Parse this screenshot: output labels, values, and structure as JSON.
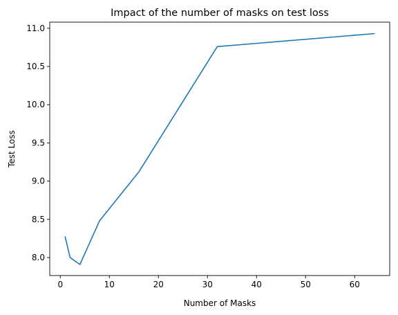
{
  "chart_data": {
    "type": "line",
    "title": "Impact of the number of masks on test loss",
    "xlabel": "Number of Masks",
    "ylabel": "Test Loss",
    "xlim": [
      -2.15,
      67.15
    ],
    "ylim": [
      7.765,
      11.08
    ],
    "x_ticks": [
      0,
      10,
      20,
      30,
      40,
      50,
      60
    ],
    "y_ticks": [
      8.0,
      8.5,
      9.0,
      9.5,
      10.0,
      10.5,
      11.0
    ],
    "y_tick_labels": [
      "8.0",
      "8.5",
      "9.0",
      "9.5",
      "10.0",
      "10.5",
      "11.0"
    ],
    "grid": false,
    "legend": "none",
    "series": [
      {
        "color": "#1f77b4",
        "x": [
          1,
          2,
          4,
          8,
          16,
          32,
          64
        ],
        "y": [
          8.27,
          8.0,
          7.91,
          8.48,
          9.12,
          10.76,
          10.93
        ]
      }
    ]
  }
}
